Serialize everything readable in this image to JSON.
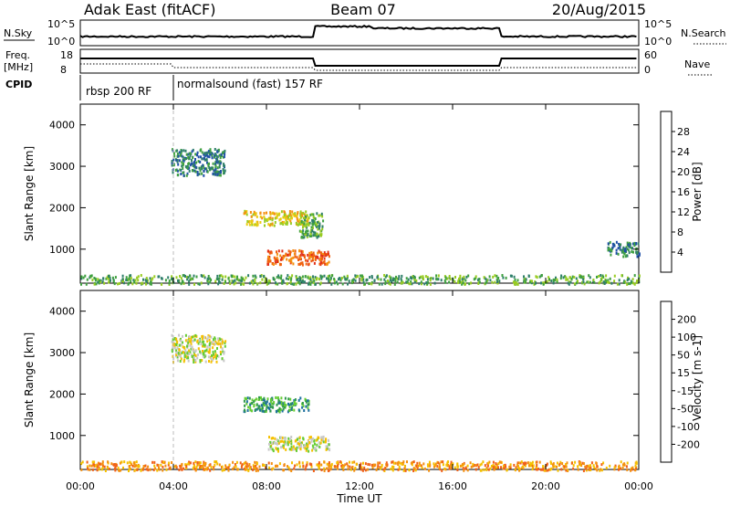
{
  "header": {
    "title": "Adak East (fitACF)",
    "beam": "Beam 07",
    "date": "20/Aug/2015"
  },
  "top_panels": {
    "nsky_label": "N.Sky",
    "nsky_ticks": [
      "10^5",
      "10^0"
    ],
    "nsearch_label": "N.Search",
    "nsearch_ticks": [
      "10^5",
      "10^0"
    ],
    "freq_label": "Freq.",
    "freq_unit": "[MHz]",
    "freq_ticks": [
      "18",
      "8"
    ],
    "nave_label": "Nave",
    "nave_ticks": [
      "60",
      "0"
    ],
    "cpid_label": "CPID",
    "cpid_segments": [
      "rbsp 200 RF",
      "normalsound (fast) 157 RF"
    ]
  },
  "chart_data": [
    {
      "type": "heatmap",
      "title": "",
      "ylabel": "Slant Range [km]",
      "xlabel": "Time UT",
      "yticks": [
        "1000",
        "2000",
        "3000",
        "4000"
      ],
      "ylim": [
        180,
        4500
      ],
      "xticks": [
        "00:00",
        "04:00",
        "08:00",
        "12:00",
        "16:00",
        "20:00",
        "00:00"
      ],
      "colorbar": {
        "label": "Power [dB]",
        "ticks": [
          "4",
          "8",
          "12",
          "16",
          "20",
          "24",
          "28"
        ],
        "colors": [
          "#1133ee",
          "#1f4fa8",
          "#2f7f6a",
          "#3fa040",
          "#99cc22",
          "#e8cc10",
          "#f49010",
          "#f06010",
          "#e23018",
          "#cc1010"
        ]
      },
      "regions": [
        {
          "t": [
            7.0,
            9.8
          ],
          "r": [
            1600,
            1950
          ],
          "level": 5
        },
        {
          "t": [
            8.0,
            10.7
          ],
          "r": [
            650,
            1000
          ],
          "level": 7
        },
        {
          "t": [
            3.9,
            6.2
          ],
          "r": [
            2800,
            3450
          ],
          "level": 2
        },
        {
          "t": [
            9.4,
            10.4
          ],
          "r": [
            1300,
            1900
          ],
          "level": 3
        },
        {
          "t": [
            22.6,
            24.0
          ],
          "r": [
            850,
            1200
          ],
          "level": 2
        },
        {
          "t": [
            0.0,
            24.0
          ],
          "r": [
            180,
            400
          ],
          "level": 3
        }
      ]
    },
    {
      "type": "heatmap",
      "title": "",
      "ylabel": "Slant Range [km]",
      "xlabel": "Time UT",
      "yticks": [
        "1000",
        "2000",
        "3000",
        "4000"
      ],
      "ylim": [
        180,
        4500
      ],
      "xticks": [
        "00:00",
        "04:00",
        "08:00",
        "12:00",
        "16:00",
        "20:00",
        "00:00"
      ],
      "colorbar": {
        "label": "Velocity [m s-1]",
        "ticks": [
          "200",
          "100",
          "50",
          "15",
          "-15",
          "-50",
          "-100",
          "-200"
        ],
        "colors": [
          "#1a3fcf",
          "#1f70a0",
          "#2f9a4a",
          "#66cc33",
          "#c8c8c8",
          "#f5c000",
          "#f49010",
          "#f06018",
          "#e02010"
        ]
      },
      "regions": [
        {
          "t": [
            7.0,
            9.8
          ],
          "r": [
            1600,
            1950
          ],
          "level": 2
        },
        {
          "t": [
            8.0,
            10.7
          ],
          "r": [
            650,
            1000
          ],
          "level": 4
        },
        {
          "t": [
            3.9,
            6.2
          ],
          "r": [
            2800,
            3450
          ],
          "level": 4
        },
        {
          "t": [
            0.0,
            24.0
          ],
          "r": [
            180,
            400
          ],
          "level": 6
        }
      ]
    }
  ]
}
